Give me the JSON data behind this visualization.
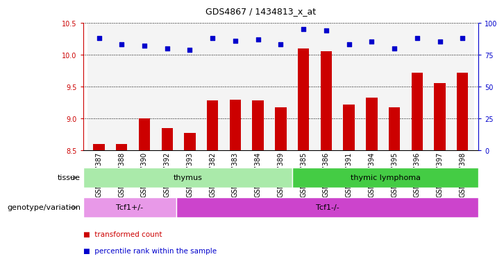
{
  "title": "GDS4867 / 1434813_x_at",
  "samples": [
    "GSM1327387",
    "GSM1327388",
    "GSM1327390",
    "GSM1327392",
    "GSM1327393",
    "GSM1327382",
    "GSM1327383",
    "GSM1327384",
    "GSM1327389",
    "GSM1327385",
    "GSM1327386",
    "GSM1327391",
    "GSM1327394",
    "GSM1327395",
    "GSM1327396",
    "GSM1327397",
    "GSM1327398"
  ],
  "transformed_counts": [
    8.6,
    8.6,
    9.0,
    8.85,
    8.78,
    9.28,
    9.3,
    9.28,
    9.18,
    10.1,
    10.05,
    9.22,
    9.33,
    9.18,
    9.72,
    9.56,
    9.72
  ],
  "percentile_ranks": [
    88,
    83,
    82,
    80,
    79,
    88,
    86,
    87,
    83,
    95,
    94,
    83,
    85,
    80,
    88,
    85,
    88
  ],
  "ylim_left": [
    8.5,
    10.5
  ],
  "ylim_right": [
    0,
    100
  ],
  "yticks_left": [
    8.5,
    9.0,
    9.5,
    10.0,
    10.5
  ],
  "yticks_right": [
    0,
    25,
    50,
    75,
    100
  ],
  "bar_color": "#cc0000",
  "dot_color": "#0000cc",
  "bar_width": 0.5,
  "tissue_groups": [
    {
      "label": "thymus",
      "start": 0,
      "end": 9,
      "color": "#aaeaaa"
    },
    {
      "label": "thymic lymphoma",
      "start": 9,
      "end": 17,
      "color": "#44cc44"
    }
  ],
  "genotype_groups": [
    {
      "label": "Tcf1+/-",
      "start": 0,
      "end": 4,
      "color": "#e899e8"
    },
    {
      "label": "Tcf1-/-",
      "start": 4,
      "end": 17,
      "color": "#cc44cc"
    }
  ],
  "legend_items": [
    {
      "label": "transformed count",
      "color": "#cc0000"
    },
    {
      "label": "percentile rank within the sample",
      "color": "#0000cc"
    }
  ],
  "tissue_row_label": "tissue",
  "geno_row_label": "genotype/variation",
  "sample_bg_color": "#dddddd",
  "title_fontsize": 9,
  "tick_fontsize": 7,
  "label_fontsize": 8,
  "row_label_fontsize": 8
}
